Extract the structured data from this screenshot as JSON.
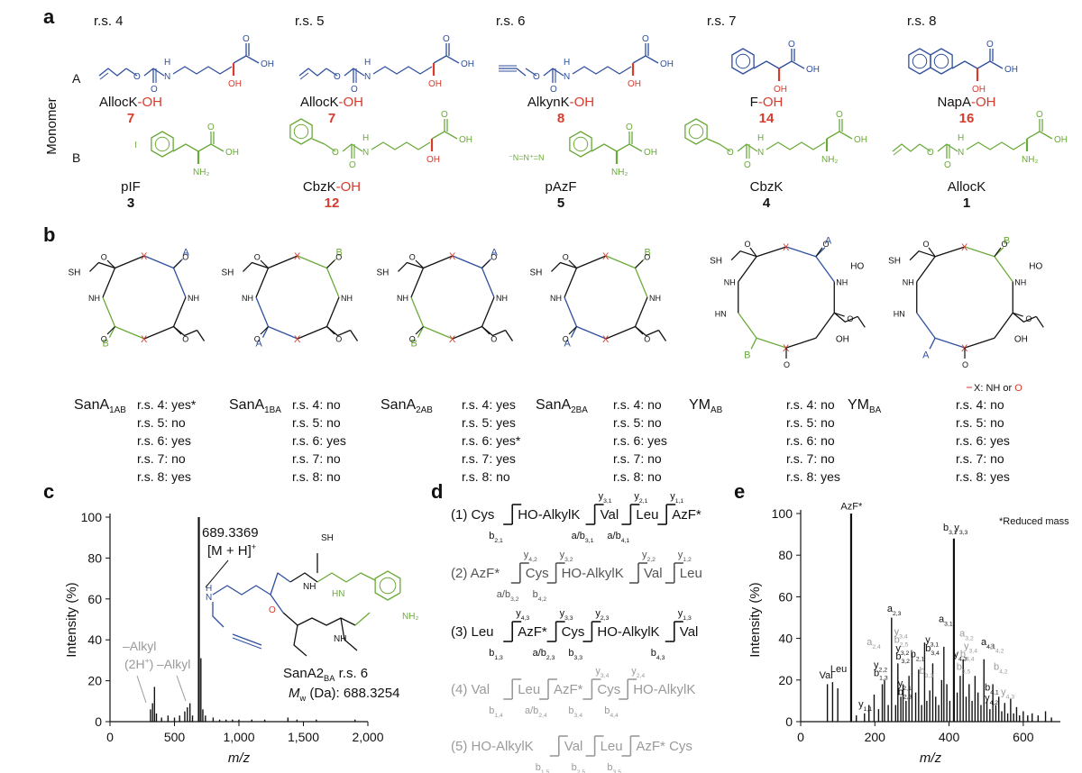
{
  "panel_a": {
    "label": "a",
    "axis_label": "Monomer",
    "row_labels": [
      "A",
      "B"
    ],
    "columns": [
      {
        "rs": "r.s. 4",
        "A": {
          "name": "AllocK",
          "suffix": "-OH",
          "num": "7"
        },
        "B": {
          "name": "pIF",
          "suffix": "",
          "num": "3"
        }
      },
      {
        "rs": "r.s. 5",
        "A": {
          "name": "AllocK",
          "suffix": "-OH",
          "num": "7"
        },
        "B": {
          "name": "CbzK",
          "suffix": "-OH",
          "num": "12"
        }
      },
      {
        "rs": "r.s. 6",
        "A": {
          "name": "AlkynK",
          "suffix": "-OH",
          "num": "8"
        },
        "B": {
          "name": "pAzF",
          "suffix": "",
          "num": "5"
        }
      },
      {
        "rs": "r.s. 7",
        "A": {
          "name": "F",
          "suffix": "-OH",
          "num": "14"
        },
        "B": {
          "name": "CbzK",
          "suffix": "",
          "num": "4"
        }
      },
      {
        "rs": "r.s. 8",
        "A": {
          "name": "NapA",
          "suffix": "-OH",
          "num": "16"
        },
        "B": {
          "name": "AllocK",
          "suffix": "",
          "num": "1"
        }
      }
    ],
    "atom_labels": {
      "oh": "OH",
      "nh2": "NH₂",
      "o": "O",
      "h": "H",
      "n": "N",
      "i": "I"
    }
  },
  "panel_b": {
    "label": "b",
    "legend": {
      "prefix": "X: NH or ",
      "o": "O"
    },
    "macrocycles": [
      {
        "name": "SanA",
        "sub": "1AB",
        "rows": [
          "r.s. 4: yes*",
          "r.s. 5: no",
          "r.s. 6: yes",
          "r.s. 7: no",
          "r.s. 8: yes"
        ]
      },
      {
        "name": "SanA",
        "sub": "1BA",
        "rows": [
          "r.s. 4: no",
          "r.s. 5: no",
          "r.s. 6: yes",
          "r.s. 7: no",
          "r.s. 8: no"
        ]
      },
      {
        "name": "SanA",
        "sub": "2AB",
        "rows": [
          "r.s. 4: yes",
          "r.s. 5: yes",
          "r.s. 6: yes*",
          "r.s. 7: yes",
          "r.s. 8: no"
        ]
      },
      {
        "name": "SanA",
        "sub": "2BA",
        "rows": [
          "r.s. 4: no",
          "r.s. 5: no",
          "r.s. 6: yes",
          "r.s. 7: no",
          "r.s. 8: no"
        ]
      },
      {
        "name": "YM",
        "sub": "AB",
        "rows": [
          "r.s. 4: no",
          "r.s. 5: no",
          "r.s. 6: no",
          "r.s. 7: no",
          "r.s. 8: yes"
        ]
      },
      {
        "name": "YM",
        "sub": "BA",
        "rows": [
          "r.s. 4: no",
          "r.s. 5: no",
          "r.s. 6: yes",
          "r.s. 7: no",
          "r.s. 8: yes"
        ]
      }
    ],
    "atom_labels": {
      "sh": "SH",
      "ho": "HO",
      "oh": "OH",
      "nh": "NH",
      "hn": "HN",
      "n": "N",
      "h": "H",
      "o": "O",
      "x": "X",
      "a": "A",
      "b": "B"
    }
  },
  "panel_c": {
    "label": "c",
    "chart_data": {
      "type": "bar",
      "xlabel": "m/z",
      "ylabel": "Intensity (%)",
      "xlim": [
        0,
        2000
      ],
      "ylim": [
        0,
        100
      ],
      "xticks": [
        "0",
        "500",
        "1,000",
        "1,500",
        "2,000"
      ],
      "yticks": [
        "0",
        "20",
        "40",
        "60",
        "80",
        "100"
      ],
      "peaks": [
        {
          "x": 314,
          "y": 6
        },
        {
          "x": 330,
          "y": 9
        },
        {
          "x": 345,
          "y": 17
        },
        {
          "x": 360,
          "y": 4
        },
        {
          "x": 400,
          "y": 2
        },
        {
          "x": 450,
          "y": 3
        },
        {
          "x": 500,
          "y": 2
        },
        {
          "x": 540,
          "y": 3
        },
        {
          "x": 580,
          "y": 5
        },
        {
          "x": 600,
          "y": 7
        },
        {
          "x": 620,
          "y": 9
        },
        {
          "x": 640,
          "y": 3
        },
        {
          "x": 689,
          "y": 100
        },
        {
          "x": 705,
          "y": 31
        },
        {
          "x": 720,
          "y": 6
        },
        {
          "x": 740,
          "y": 3
        },
        {
          "x": 800,
          "y": 2
        },
        {
          "x": 850,
          "y": 1
        },
        {
          "x": 900,
          "y": 1
        },
        {
          "x": 950,
          "y": 1
        },
        {
          "x": 1000,
          "y": 1
        },
        {
          "x": 1100,
          "y": 1
        },
        {
          "x": 1200,
          "y": 1
        },
        {
          "x": 1380,
          "y": 2
        },
        {
          "x": 1450,
          "y": 1
        },
        {
          "x": 1600,
          "y": 1
        },
        {
          "x": 1900,
          "y": 1
        }
      ],
      "annotations": {
        "main_mz": "689.3369",
        "main_ion_a": "[M + H]",
        "main_ion_b": "+",
        "loss1_a": "–Alkyl",
        "loss1_b": "(2H",
        "loss1_c": "+",
        "loss1_d": ")",
        "loss2": "–Alkyl"
      },
      "compound": {
        "name_a": "SanA2",
        "name_sub": "BA",
        "name_b": " r.s. 6",
        "mw_a": "M",
        "mw_sub": "w",
        "mw_b": " (Da): 688.3254"
      }
    },
    "atom_labels": {
      "sh": "SH",
      "hn": "HN",
      "nh": "NH",
      "nh2": "NH₂",
      "o": "O",
      "h": "H",
      "n": "N"
    }
  },
  "panel_d": {
    "label": "d",
    "rows": [
      {
        "index": "(1)",
        "residues": [
          "Cys",
          "HO-AlkylK",
          "Val",
          "Leu",
          "AzF*"
        ],
        "tops": [
          [
            "y",
            "3,1"
          ],
          [
            "y",
            "2,1"
          ],
          [
            "y",
            "1,1"
          ]
        ],
        "bottoms": [
          [
            "b",
            "2,1"
          ],
          [
            "a/b",
            "3,1"
          ],
          [
            "a/b",
            "4,1"
          ]
        ]
      },
      {
        "index": "(2)",
        "residues": [
          "AzF*",
          "Cys",
          "HO-AlkylK",
          "Val",
          "Leu"
        ],
        "tops": [
          [
            "y",
            "4,2"
          ],
          [
            "y",
            "3,2"
          ],
          [
            "y",
            "2,2"
          ],
          [
            "y",
            "1,2"
          ]
        ],
        "bottoms": [
          [
            "a/b",
            "3,2"
          ],
          [
            "b",
            "4,2"
          ]
        ]
      },
      {
        "index": "(3)",
        "residues": [
          "Leu",
          "AzF*",
          "Cys",
          "HO-AlkylK",
          "Val"
        ],
        "tops": [
          [
            "y",
            "4,3"
          ],
          [
            "y",
            "3,3"
          ],
          [
            "y",
            "2,3"
          ],
          [
            "y",
            "1,3"
          ]
        ],
        "bottoms": [
          [
            "b",
            "1,3"
          ],
          [
            "a/b",
            "2,3"
          ],
          [
            "b",
            "3,3"
          ],
          [
            "b",
            "4,3"
          ]
        ]
      },
      {
        "index": "(4)",
        "residues": [
          "Val",
          "Leu",
          "AzF*",
          "Cys",
          "HO-AlkylK"
        ],
        "tops": [
          [
            "y",
            "3,4"
          ],
          [
            "y",
            "2,4"
          ]
        ],
        "bottoms": [
          [
            "b",
            "1,4"
          ],
          [
            "a/b",
            "2,4"
          ],
          [
            "b",
            "3,4"
          ],
          [
            "b",
            "4,4"
          ]
        ]
      },
      {
        "index": "(5)",
        "residues": [
          "HO-AlkylK",
          "Val",
          "Leu",
          "AzF* Cys"
        ],
        "tops": [],
        "bottoms": [
          [
            "b",
            "1,5"
          ],
          [
            "b",
            "2,5"
          ],
          [
            "b",
            "3,5"
          ]
        ]
      }
    ]
  },
  "panel_e": {
    "label": "e",
    "note": "*Reduced mass",
    "chart_data": {
      "type": "bar",
      "xlabel": "m/z",
      "ylabel": "Intensity (%)",
      "xlim": [
        0,
        700
      ],
      "ylim": [
        0,
        100
      ],
      "xticks": [
        "0",
        "200",
        "400",
        "600"
      ],
      "yticks": [
        "0",
        "20",
        "40",
        "60",
        "80",
        "100"
      ],
      "peaks": [
        {
          "x": 72,
          "y": 18
        },
        {
          "x": 86,
          "y": 19
        },
        {
          "x": 100,
          "y": 16
        },
        {
          "x": 136,
          "y": 100
        },
        {
          "x": 150,
          "y": 3
        },
        {
          "x": 172,
          "y": 4
        },
        {
          "x": 184,
          "y": 8
        },
        {
          "x": 198,
          "y": 13
        },
        {
          "x": 210,
          "y": 6
        },
        {
          "x": 220,
          "y": 18
        },
        {
          "x": 226,
          "y": 20
        },
        {
          "x": 236,
          "y": 8
        },
        {
          "x": 245,
          "y": 50
        },
        {
          "x": 256,
          "y": 8
        },
        {
          "x": 262,
          "y": 28
        },
        {
          "x": 270,
          "y": 12
        },
        {
          "x": 276,
          "y": 18
        },
        {
          "x": 284,
          "y": 10
        },
        {
          "x": 292,
          "y": 22
        },
        {
          "x": 300,
          "y": 33
        },
        {
          "x": 310,
          "y": 14
        },
        {
          "x": 318,
          "y": 25
        },
        {
          "x": 326,
          "y": 8
        },
        {
          "x": 334,
          "y": 38
        },
        {
          "x": 340,
          "y": 10
        },
        {
          "x": 348,
          "y": 15
        },
        {
          "x": 356,
          "y": 28
        },
        {
          "x": 364,
          "y": 12
        },
        {
          "x": 372,
          "y": 8
        },
        {
          "x": 380,
          "y": 20
        },
        {
          "x": 386,
          "y": 36
        },
        {
          "x": 394,
          "y": 18
        },
        {
          "x": 402,
          "y": 10
        },
        {
          "x": 413,
          "y": 88
        },
        {
          "x": 422,
          "y": 14
        },
        {
          "x": 430,
          "y": 22
        },
        {
          "x": 438,
          "y": 30
        },
        {
          "x": 446,
          "y": 12
        },
        {
          "x": 454,
          "y": 18
        },
        {
          "x": 462,
          "y": 10
        },
        {
          "x": 470,
          "y": 22
        },
        {
          "x": 478,
          "y": 14
        },
        {
          "x": 486,
          "y": 8
        },
        {
          "x": 494,
          "y": 30
        },
        {
          "x": 502,
          "y": 10
        },
        {
          "x": 510,
          "y": 6
        },
        {
          "x": 518,
          "y": 18
        },
        {
          "x": 526,
          "y": 8
        },
        {
          "x": 534,
          "y": 12
        },
        {
          "x": 542,
          "y": 5
        },
        {
          "x": 550,
          "y": 9
        },
        {
          "x": 558,
          "y": 4
        },
        {
          "x": 566,
          "y": 11
        },
        {
          "x": 574,
          "y": 4
        },
        {
          "x": 582,
          "y": 7
        },
        {
          "x": 590,
          "y": 3
        },
        {
          "x": 600,
          "y": 5
        },
        {
          "x": 612,
          "y": 3
        },
        {
          "x": 624,
          "y": 4
        },
        {
          "x": 640,
          "y": 3
        },
        {
          "x": 660,
          "y": 5
        },
        {
          "x": 676,
          "y": 2
        }
      ],
      "labels": [
        {
          "main": "Val",
          "sub": "",
          "x": 50,
          "y": 20,
          "color": "#111"
        },
        {
          "main": "Leu",
          "sub": "",
          "x": 80,
          "y": 23,
          "color": "#111"
        },
        {
          "main": "AzF*",
          "sub": "",
          "x": 108,
          "y": 101,
          "color": "#111"
        },
        {
          "main": "y",
          "sub": "1,1",
          "x": 156,
          "y": 6,
          "color": "#111"
        },
        {
          "main": "a",
          "sub": "2,4",
          "x": 178,
          "y": 36,
          "color": "#9a9a9a"
        },
        {
          "main": "y",
          "sub": "2,2",
          "x": 197,
          "y": 25,
          "color": "#111"
        },
        {
          "main": "b",
          "sub": "1,3",
          "x": 197,
          "y": 21,
          "color": "#111"
        },
        {
          "main": "a",
          "sub": "2,3",
          "x": 233,
          "y": 52,
          "color": "#111"
        },
        {
          "main": "y",
          "sub": "3,4",
          "x": 252,
          "y": 41,
          "color": "#9a9a9a"
        },
        {
          "main": "b",
          "sub": "2,5",
          "x": 252,
          "y": 37,
          "color": "#9a9a9a"
        },
        {
          "main": "y",
          "sub": "3,2",
          "x": 256,
          "y": 33,
          "color": "#111"
        },
        {
          "main": "b",
          "sub": "3,2",
          "x": 256,
          "y": 29,
          "color": "#111"
        },
        {
          "main": "b",
          "sub": "2,1",
          "x": 296,
          "y": 30,
          "color": "#111"
        },
        {
          "main": "y",
          "sub": "2,1",
          "x": 262,
          "y": 16,
          "color": "#111"
        },
        {
          "main": "b",
          "sub": "2,3",
          "x": 262,
          "y": 12,
          "color": "#111"
        },
        {
          "main": "y",
          "sub": "3,1",
          "x": 336,
          "y": 37,
          "color": "#111"
        },
        {
          "main": "b",
          "sub": "3,4",
          "x": 336,
          "y": 33,
          "color": "#111"
        },
        {
          "main": "b",
          "sub": "3,3",
          "x": 320,
          "y": 22,
          "color": "#9a9a9a"
        },
        {
          "main": "a",
          "sub": "3,1",
          "x": 372,
          "y": 47,
          "color": "#111"
        },
        {
          "main": "b",
          "sub": "3,1",
          "x": 384,
          "y": 91,
          "color": "#111"
        },
        {
          "main": "y",
          "sub": "3,3",
          "x": 414,
          "y": 91,
          "color": "#111"
        },
        {
          "main": "a",
          "sub": "3,2",
          "x": 428,
          "y": 40,
          "color": "#9a9a9a"
        },
        {
          "main": "b",
          "sub": "3,5",
          "x": 420,
          "y": 24,
          "color": "#9a9a9a"
        },
        {
          "main": "y",
          "sub": "4,3",
          "x": 412,
          "y": 30,
          "color": "#111"
        },
        {
          "main": "b",
          "sub": "4,4",
          "x": 430,
          "y": 30,
          "color": "#9a9a9a"
        },
        {
          "main": "y",
          "sub": "3,4",
          "x": 440,
          "y": 34,
          "color": "#9a9a9a"
        },
        {
          "main": "a",
          "sub": "4,1",
          "x": 486,
          "y": 36,
          "color": "#111"
        },
        {
          "main": "a",
          "sub": "4,2",
          "x": 510,
          "y": 34,
          "color": "#9a9a9a"
        },
        {
          "main": "b",
          "sub": "4,2",
          "x": 520,
          "y": 24,
          "color": "#9a9a9a"
        },
        {
          "main": "b",
          "sub": "4,1",
          "x": 496,
          "y": 14,
          "color": "#111"
        },
        {
          "main": "y",
          "sub": "4,2",
          "x": 496,
          "y": 9,
          "color": "#111"
        },
        {
          "main": "y",
          "sub": "4,3",
          "x": 540,
          "y": 12,
          "color": "#9a9a9a"
        }
      ]
    }
  }
}
